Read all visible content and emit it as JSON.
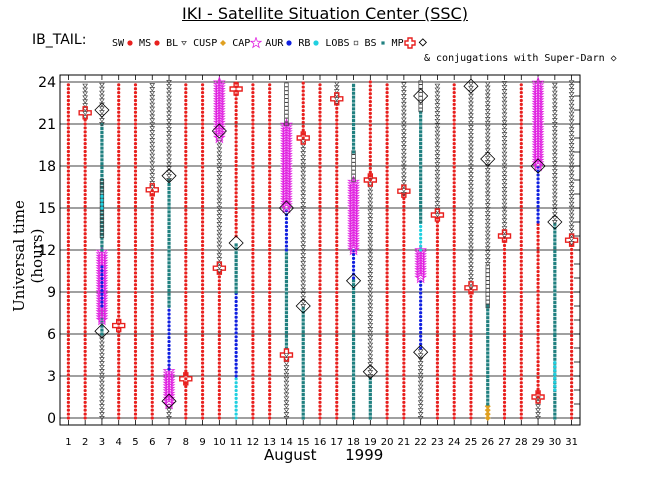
{
  "page": {
    "title": "IKI - Satellite Situation Center (SSC)"
  },
  "legend": {
    "label": "IB_TAIL:",
    "note": "& conjugations with Super-Darn",
    "entries": [
      {
        "key": "SW",
        "marker": "dot",
        "color": "#e8201e"
      },
      {
        "key": "MS",
        "marker": "dot",
        "color": "#e8201e"
      },
      {
        "key": "BL",
        "marker": "tri-down",
        "color": "#404040"
      },
      {
        "key": "CUSP",
        "marker": "diamond-fill",
        "color": "#e0a020"
      },
      {
        "key": "CAP",
        "marker": "star",
        "color": "#e020e0"
      },
      {
        "key": "AUR",
        "marker": "dot",
        "color": "#1020e0"
      },
      {
        "key": "RB",
        "marker": "dot",
        "color": "#20d0e0"
      },
      {
        "key": "LOBS",
        "marker": "square-open",
        "color": "#404040"
      },
      {
        "key": "BS",
        "marker": "square-fill",
        "color": "#208080"
      },
      {
        "key": "MP",
        "marker": "cross",
        "color": "#e8201e"
      }
    ],
    "conjugation_marker": "diamond-open"
  },
  "chart_data": {
    "type": "scatter",
    "title": "IKI - Satellite Situation Center (SSC)",
    "xlabel": "August      1999",
    "ylabel": "Universal time (hours)",
    "xlim": [
      0.5,
      31.5
    ],
    "ylim": [
      -0.5,
      24.5
    ],
    "x_ticks": [
      1,
      2,
      3,
      4,
      5,
      6,
      7,
      8,
      9,
      10,
      11,
      12,
      13,
      14,
      15,
      16,
      17,
      18,
      19,
      20,
      21,
      22,
      23,
      24,
      25,
      26,
      27,
      28,
      29,
      30,
      31
    ],
    "y_ticks": [
      0,
      3,
      6,
      9,
      12,
      15,
      18,
      21,
      24
    ],
    "grid": "horizontal",
    "days": [
      {
        "day": 1,
        "segments": [
          [
            "SW",
            0,
            24
          ]
        ]
      },
      {
        "day": 2,
        "segments": [
          [
            "SW",
            0,
            21.5
          ],
          [
            "BL",
            21.5,
            24
          ]
        ],
        "mp": [
          21.8
        ]
      },
      {
        "day": 3,
        "segments": [
          [
            "BL",
            0,
            6
          ],
          [
            "BS",
            6,
            8
          ],
          [
            "CAP",
            7,
            12
          ],
          [
            "AUR",
            8,
            11
          ],
          [
            "BS",
            12,
            21
          ],
          [
            "LOBS",
            13,
            17
          ],
          [
            "RB",
            15,
            16
          ],
          [
            "BL",
            21,
            24
          ]
        ],
        "conj": [
          6.2,
          22
        ]
      },
      {
        "day": 4,
        "segments": [
          [
            "SW",
            0,
            24
          ]
        ],
        "mp": [
          6.6
        ]
      },
      {
        "day": 5,
        "segments": [
          [
            "SW",
            0,
            24
          ]
        ]
      },
      {
        "day": 6,
        "segments": [
          [
            "SW",
            0,
            16.5
          ],
          [
            "BL",
            16.5,
            24
          ]
        ],
        "mp": [
          16.3
        ]
      },
      {
        "day": 7,
        "segments": [
          [
            "BL",
            0,
            1
          ],
          [
            "CAP",
            1,
            3.5
          ],
          [
            "AUR",
            3.5,
            8
          ],
          [
            "BS",
            8,
            17
          ],
          [
            "BL",
            17,
            24
          ]
        ],
        "conj": [
          1.2,
          17.3
        ]
      },
      {
        "day": 8,
        "segments": [
          [
            "SW",
            0,
            24
          ]
        ],
        "mp": [
          2.8
        ]
      },
      {
        "day": 9,
        "segments": [
          [
            "SW",
            0,
            24
          ]
        ]
      },
      {
        "day": 10,
        "segments": [
          [
            "SW",
            0,
            10.5
          ],
          [
            "BL",
            10.5,
            20
          ],
          [
            "CAP",
            20,
            24
          ]
        ],
        "mp": [
          10.7
        ],
        "conj": [
          20.5
        ]
      },
      {
        "day": 11,
        "segments": [
          [
            "RB",
            0,
            3
          ],
          [
            "AUR",
            3,
            9
          ],
          [
            "BS",
            9,
            12.5
          ],
          [
            "SW",
            13,
            24
          ]
        ],
        "mp": [
          23.5
        ],
        "conj": [
          12.5
        ]
      },
      {
        "day": 12,
        "segments": [
          [
            "SW",
            0,
            24
          ]
        ]
      },
      {
        "day": 13,
        "segments": [
          [
            "SW",
            0,
            24
          ]
        ]
      },
      {
        "day": 14,
        "segments": [
          [
            "BL",
            0,
            4.5
          ],
          [
            "BS",
            5,
            12
          ],
          [
            "AUR",
            12,
            15
          ],
          [
            "CAP",
            15,
            21
          ],
          [
            "LOBS",
            21,
            24
          ]
        ],
        "mp": [
          4.5
        ],
        "conj": [
          15
        ]
      },
      {
        "day": 15,
        "segments": [
          [
            "BS",
            0,
            8
          ],
          [
            "BL",
            8,
            20
          ],
          [
            "SW",
            20,
            24
          ]
        ],
        "mp": [
          20
        ],
        "conj": [
          8
        ]
      },
      {
        "day": 16,
        "segments": [
          [
            "SW",
            0,
            24
          ]
        ]
      },
      {
        "day": 17,
        "segments": [
          [
            "SW",
            0,
            22.5
          ],
          [
            "BL",
            22.5,
            24
          ]
        ],
        "mp": [
          22.8
        ]
      },
      {
        "day": 18,
        "segments": [
          [
            "BS",
            0,
            10
          ],
          [
            "AUR",
            10,
            12
          ],
          [
            "CAP",
            12,
            17
          ],
          [
            "LOBS",
            17,
            19
          ],
          [
            "BS",
            19,
            24
          ]
        ],
        "conj": [
          9.8
        ]
      },
      {
        "day": 19,
        "segments": [
          [
            "BS",
            0,
            3
          ],
          [
            "BL",
            3,
            17
          ],
          [
            "SW",
            17,
            24
          ]
        ],
        "mp": [
          17
        ],
        "conj": [
          3.3
        ]
      },
      {
        "day": 20,
        "segments": [
          [
            "SW",
            0,
            24
          ]
        ]
      },
      {
        "day": 21,
        "segments": [
          [
            "SW",
            0,
            16
          ],
          [
            "BL",
            16,
            24
          ]
        ],
        "mp": [
          16.2
        ]
      },
      {
        "day": 22,
        "segments": [
          [
            "BL",
            0,
            5
          ],
          [
            "AUR",
            5,
            10
          ],
          [
            "CAP",
            10,
            12
          ],
          [
            "RB",
            12,
            14
          ],
          [
            "BS",
            14,
            22
          ],
          [
            "LOBS",
            22,
            24
          ]
        ],
        "conj": [
          4.7,
          23
        ]
      },
      {
        "day": 23,
        "segments": [
          [
            "SW",
            0,
            14.5
          ],
          [
            "BL",
            14.5,
            24
          ]
        ],
        "mp": [
          14.5
        ]
      },
      {
        "day": 24,
        "segments": [
          [
            "SW",
            0,
            24
          ]
        ]
      },
      {
        "day": 25,
        "segments": [
          [
            "SW",
            0,
            9.3
          ],
          [
            "BL",
            9.3,
            24
          ]
        ],
        "mp": [
          9.3
        ],
        "conj": [
          23.7
        ]
      },
      {
        "day": 26,
        "segments": [
          [
            "CUSP",
            0,
            1
          ],
          [
            "BS",
            1,
            8
          ],
          [
            "LOBS",
            8,
            11
          ],
          [
            "BL",
            11,
            24
          ]
        ],
        "conj": [
          18.5
        ]
      },
      {
        "day": 27,
        "segments": [
          [
            "SW",
            0,
            13
          ],
          [
            "BL",
            13,
            24
          ]
        ],
        "mp": [
          13
        ]
      },
      {
        "day": 28,
        "segments": [
          [
            "SW",
            0,
            24
          ]
        ]
      },
      {
        "day": 29,
        "segments": [
          [
            "BL",
            0,
            1.5
          ],
          [
            "SW",
            1.5,
            14
          ],
          [
            "AUR",
            14,
            18
          ],
          [
            "CAP",
            18,
            24
          ]
        ],
        "mp": [
          1.5
        ],
        "conj": [
          18
        ]
      },
      {
        "day": 30,
        "segments": [
          [
            "BS",
            0,
            6
          ],
          [
            "RB",
            2,
            4
          ],
          [
            "BS",
            6,
            14
          ],
          [
            "BL",
            14,
            24
          ]
        ],
        "conj": [
          14
        ]
      },
      {
        "day": 31,
        "segments": [
          [
            "SW",
            0,
            12.5
          ],
          [
            "BL",
            12.5,
            24
          ]
        ],
        "mp": [
          12.7
        ]
      }
    ]
  }
}
